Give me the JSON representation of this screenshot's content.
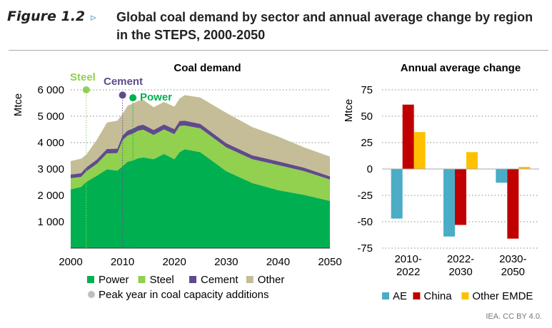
{
  "figure_label": "Figure 1.2",
  "figure_icon": "triangle-right-icon",
  "title": "Global coal demand by sector and annual average change by region in the STEPS, 2000-2050",
  "credit": "IEA. CC BY 4.0.",
  "chart_data": [
    {
      "type": "area",
      "title": "Coal demand",
      "ylabel": "Mtce",
      "ylim": [
        0,
        6000
      ],
      "xlim": [
        2000,
        2050
      ],
      "yticks": [
        "1 000",
        "2 000",
        "3 000",
        "4 000",
        "5 000",
        "6 000"
      ],
      "ytick_values": [
        1000,
        2000,
        3000,
        4000,
        5000,
        6000
      ],
      "xticks": [
        "2000",
        "2010",
        "2020",
        "2030",
        "2040",
        "2050"
      ],
      "grid": true,
      "stacked": true,
      "legend_placement": "bottom",
      "x": [
        2000,
        2002,
        2003,
        2005,
        2007,
        2009,
        2010,
        2011,
        2012,
        2013,
        2014,
        2016,
        2018,
        2020,
        2021,
        2022,
        2025,
        2030,
        2035,
        2040,
        2045,
        2050
      ],
      "series": [
        {
          "name": "Power",
          "color": "#00b050",
          "values": [
            2230,
            2320,
            2510,
            2740,
            2990,
            2940,
            3100,
            3280,
            3320,
            3410,
            3440,
            3370,
            3570,
            3370,
            3640,
            3750,
            3640,
            2920,
            2470,
            2200,
            2020,
            1790
          ]
        },
        {
          "name": "Steel",
          "color": "#92d050",
          "values": [
            420,
            380,
            400,
            450,
            600,
            660,
            990,
            990,
            1020,
            1040,
            1050,
            920,
            930,
            950,
            990,
            900,
            900,
            900,
            900,
            950,
            900,
            810
          ]
        },
        {
          "name": "Cement",
          "color": "#5f4b8b",
          "values": [
            140,
            140,
            150,
            160,
            170,
            170,
            180,
            190,
            190,
            190,
            190,
            190,
            190,
            190,
            190,
            180,
            170,
            160,
            150,
            140,
            130,
            120
          ]
        },
        {
          "name": "Other",
          "color": "#c4bd97",
          "values": [
            510,
            550,
            480,
            740,
            1000,
            1060,
            810,
            940,
            950,
            940,
            940,
            860,
            850,
            850,
            850,
            970,
            1000,
            1150,
            1070,
            940,
            770,
            750
          ]
        }
      ],
      "peaks": {
        "legend": "Peak year in coal capacity additions",
        "legend_color": "#bfbfbf",
        "items": [
          {
            "label": "Steel",
            "year": 2003,
            "value": 6000,
            "color": "#92d050"
          },
          {
            "label": "Cement",
            "year": 2010,
            "value": 5800,
            "color": "#5f4b8b"
          },
          {
            "label": "Power",
            "year": 2012,
            "value": 5700,
            "color": "#00b050"
          }
        ]
      }
    },
    {
      "type": "bar",
      "title": "Annual average change",
      "ylabel": "Mtce",
      "ylim": [
        -75,
        75
      ],
      "yticks": [
        "-75",
        "-50",
        "-25",
        "0",
        "25",
        "50",
        "75"
      ],
      "ytick_values": [
        -75,
        -50,
        -25,
        0,
        25,
        50,
        75
      ],
      "grid": true,
      "legend_placement": "bottom",
      "categories": [
        "2010-\n2022",
        "2022-\n2030",
        "2030-\n2050"
      ],
      "series": [
        {
          "name": "AE",
          "color": "#4bacc6",
          "values": [
            -47,
            -64,
            -13
          ]
        },
        {
          "name": "China",
          "color": "#c00000",
          "values": [
            61,
            -53,
            -66
          ]
        },
        {
          "name": "Other EMDE",
          "color": "#ffc000",
          "values": [
            35,
            16,
            2
          ]
        }
      ]
    }
  ]
}
